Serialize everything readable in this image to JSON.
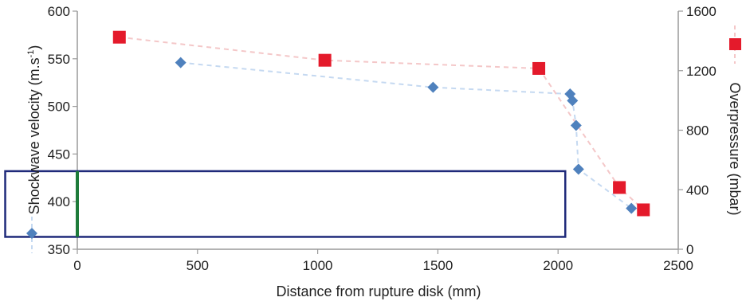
{
  "chart_data": {
    "type": "scatter",
    "xlabel": "Distance from rupture disk (mm)",
    "ylabel_left": "Shockwave velocity (m.s-1)",
    "ylabel_left_main": "Shockwave velocity (m.s",
    "ylabel_left_sup": "-1",
    "ylabel_left_tail": ")",
    "ylabel_right": "Overpressure (mbar)",
    "xlim": [
      0,
      2500
    ],
    "ylim_left": [
      350,
      600
    ],
    "ylim_right": [
      0,
      1600
    ],
    "x_ticks": [
      0,
      500,
      1000,
      1500,
      2000,
      2500
    ],
    "y_left_ticks": [
      350,
      400,
      450,
      500,
      550,
      600
    ],
    "y_right_ticks": [
      0,
      400,
      800,
      1200,
      1600
    ],
    "grid": false,
    "legend_position": "right",
    "series": [
      {
        "axis": "left",
        "marker": "diamond",
        "color": "#4f81bd",
        "line_color": "#c5d9f1",
        "points": [
          {
            "x": 430,
            "y": 546
          },
          {
            "x": 1480,
            "y": 520
          },
          {
            "x": 2050,
            "y": 513
          },
          {
            "x": 2060,
            "y": 506
          },
          {
            "x": 2075,
            "y": 480
          },
          {
            "x": 2085,
            "y": 434
          },
          {
            "x": 2305,
            "y": 393
          }
        ]
      },
      {
        "axis": "right",
        "marker": "square",
        "color": "#e41a2b",
        "line_color": "#f4c7c8",
        "points": [
          {
            "x": 175,
            "y": 1425
          },
          {
            "x": 1030,
            "y": 1270
          },
          {
            "x": 1920,
            "y": 1215
          },
          {
            "x": 2255,
            "y": 415
          },
          {
            "x": 2355,
            "y": 265
          }
        ]
      }
    ],
    "annotations": {
      "highlight_box": {
        "x_range": [
          -300,
          2030
        ],
        "y_range": [
          363,
          432
        ],
        "color": "#1f2a7a"
      },
      "green_line": {
        "x": 0,
        "y_range": [
          363,
          432
        ],
        "color": "#1e7b3a"
      }
    }
  }
}
